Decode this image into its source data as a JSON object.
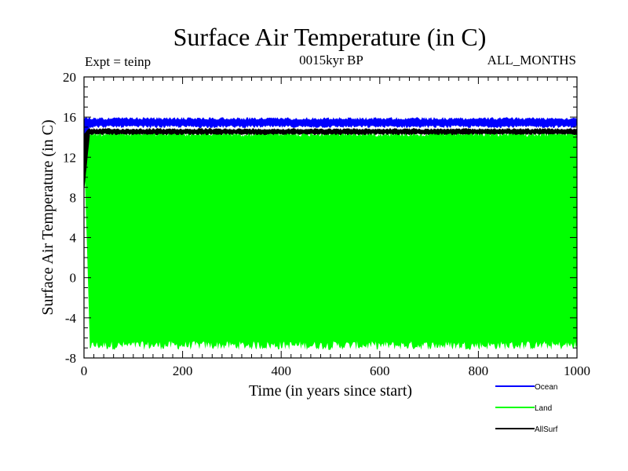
{
  "chart_data": {
    "type": "area",
    "title": "Surface Air Temperature (in C)",
    "subtitle_left": "Expt = teinp",
    "subtitle_center": "0015kyr BP",
    "subtitle_right": "ALL_MONTHS",
    "xlabel": "Time (in years since start)",
    "ylabel": "Surface Air Temperature (in C)",
    "xlim": [
      0,
      1000
    ],
    "ylim": [
      -8,
      20
    ],
    "x_ticks": [
      0,
      200,
      400,
      600,
      800,
      1000
    ],
    "y_ticks": [
      -8,
      -4,
      0,
      4,
      8,
      12,
      16,
      20
    ],
    "legend_position": "bottom-right",
    "series": [
      {
        "name": "Ocean",
        "color": "#0000ff",
        "low": 14.9,
        "high": 16.0,
        "spin_up_start": 14.3
      },
      {
        "name": "Land",
        "color": "#00ff00",
        "low": -7.2,
        "high": 14.7,
        "spin_up_start": 12.8
      },
      {
        "name": "AllSurf",
        "color": "#000000",
        "low": 14.2,
        "high": 14.9,
        "spin_up_start": 8.5
      }
    ]
  }
}
